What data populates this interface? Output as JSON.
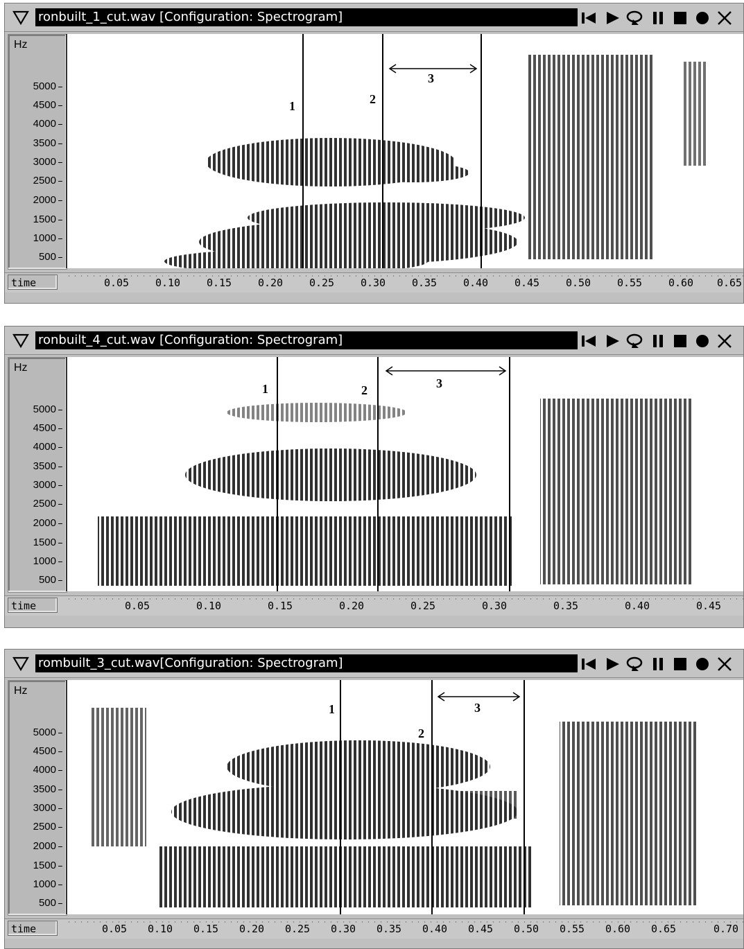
{
  "windows": [
    {
      "title": "ronbuilt_1_cut.wav [Configuration: Spectrogram]",
      "y_label": "Hz",
      "y_ticks": [
        "5000",
        "4500",
        "4000",
        "3500",
        "3000",
        "2500",
        "2000",
        "1500",
        "1000",
        "500"
      ],
      "time_label": "time",
      "time_ticks": [
        "0.05",
        "0.10",
        "0.15",
        "0.20",
        "0.25",
        "0.30",
        "0.35",
        "0.40",
        "0.45",
        "0.50",
        "0.55",
        "0.60",
        "0.65"
      ],
      "markers": [
        "1",
        "2",
        "3"
      ]
    },
    {
      "title": "ronbuilt_4_cut.wav [Configuration: Spectrogram]",
      "y_label": "Hz",
      "y_ticks": [
        "5000",
        "4500",
        "4000",
        "3500",
        "3000",
        "2500",
        "2000",
        "1500",
        "1000",
        "500"
      ],
      "time_label": "time",
      "time_ticks": [
        "0.05",
        "0.10",
        "0.15",
        "0.20",
        "0.25",
        "0.30",
        "0.35",
        "0.40",
        "0.45"
      ],
      "markers": [
        "1",
        "2",
        "3"
      ]
    },
    {
      "title": "rombuilt_3_cut.wav[Configuration: Spectrogram]",
      "y_label": "Hz",
      "y_ticks": [
        "5000",
        "4500",
        "4000",
        "3500",
        "3000",
        "2500",
        "2000",
        "1500",
        "1000",
        "500"
      ],
      "time_label": "time",
      "time_ticks": [
        "0.05",
        "0.10",
        "0.15",
        "0.20",
        "0.25",
        "0.30",
        "0.35",
        "0.40",
        "0.45",
        "0.50",
        "0.55",
        "0.60",
        "0.65",
        "0.70"
      ],
      "markers": [
        "1",
        "2",
        "3"
      ]
    }
  ],
  "controls": [
    "skip-back-icon",
    "play-icon",
    "loop-play-icon",
    "pause-icon",
    "stop-icon",
    "record-icon",
    "close-icon"
  ],
  "colors": {
    "window_bg": "#c0c0c0",
    "title_bg": "#000000",
    "title_fg": "#ffffff",
    "spectrogram_ink": "#1a1a1a"
  }
}
